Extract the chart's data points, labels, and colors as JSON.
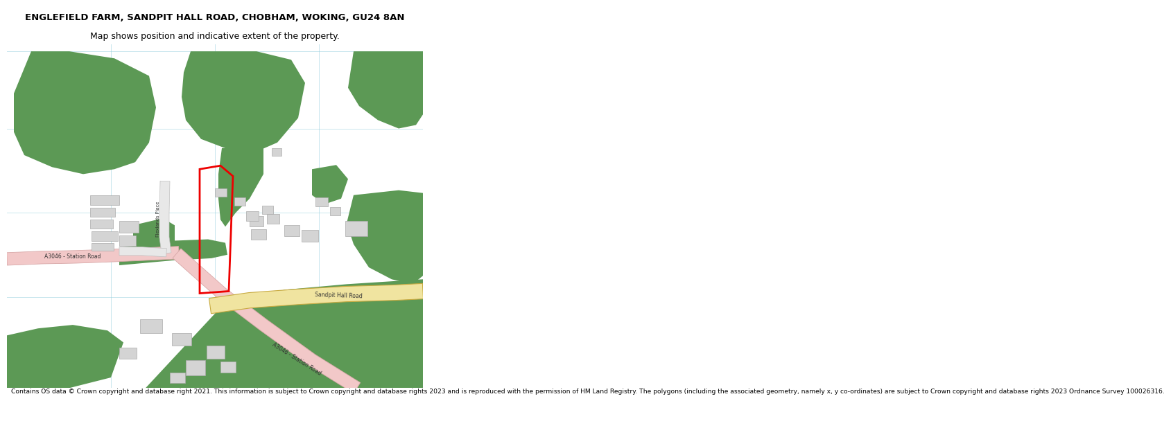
{
  "title": "ENGLEFIELD FARM, SANDPIT HALL ROAD, CHOBHAM, WOKING, GU24 8AN",
  "subtitle": "Map shows position and indicative extent of the property.",
  "footer": "Contains OS data © Crown copyright and database right 2021. This information is subject to Crown copyright and database rights 2023 and is reproduced with the permission of HM Land Registry. The polygons (including the associated geometry, namely x, y co-ordinates) are subject to Crown copyright and database rights 2023 Ordnance Survey 100026316.",
  "bg": "#ffffff",
  "green": "#5c9955",
  "road_pink_fill": "#f2c8c8",
  "road_pink_edge": "#d8a8a8",
  "road_yellow_fill": "#f0e4a0",
  "road_yellow_edge": "#c8aa40",
  "gray_road_fill": "#e8e8e8",
  "gray_road_edge": "#c0c0c0",
  "building_fill": "#d4d4d4",
  "building_edge": "#aaaaaa",
  "red_plot": "#ee0000",
  "light_blue": "#90ccdd",
  "text_color": "#333333"
}
